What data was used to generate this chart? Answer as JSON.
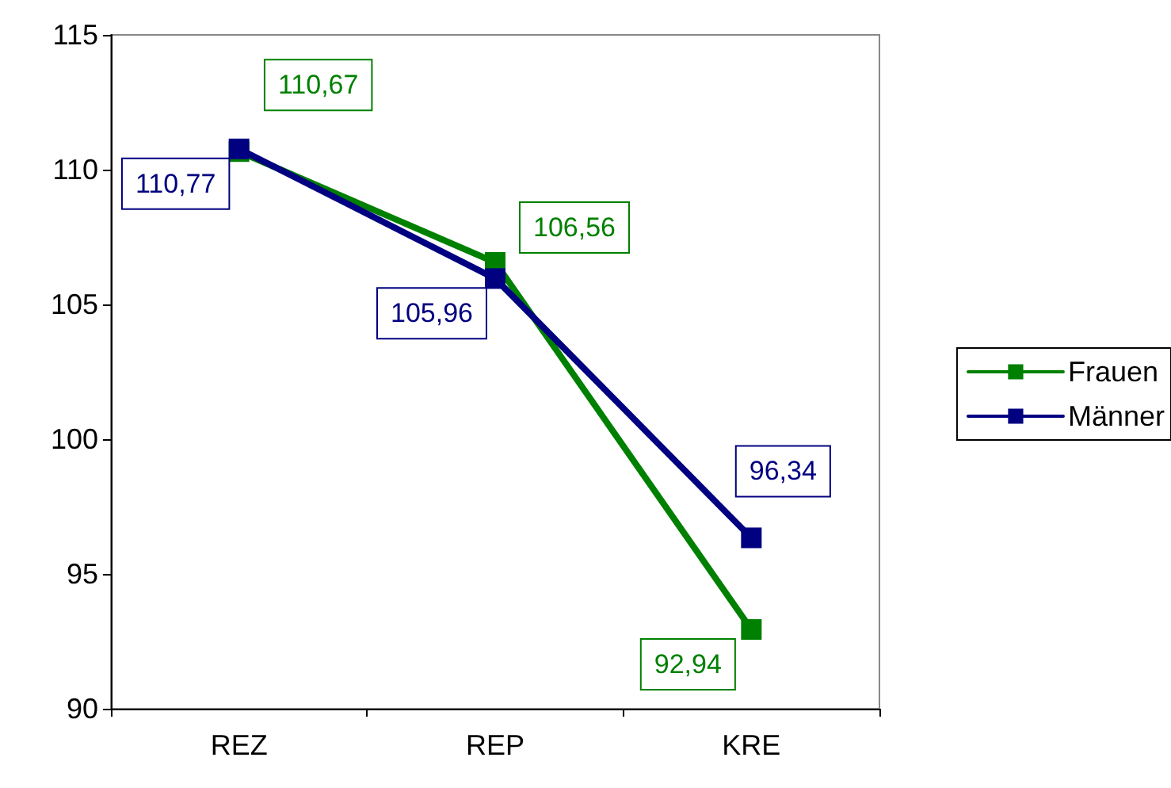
{
  "chart_data": {
    "type": "line",
    "categories": [
      "REZ",
      "REP",
      "KRE"
    ],
    "series": [
      {
        "name": "Frauen",
        "color": "#008000",
        "values": [
          110.67,
          106.56,
          92.94
        ]
      },
      {
        "name": "Männer",
        "color": "#000080",
        "values": [
          110.77,
          105.96,
          96.34
        ]
      }
    ],
    "value_labels": [
      [
        "110,67",
        "106,56",
        "92,94"
      ],
      [
        "110,77",
        "105,96",
        "96,34"
      ]
    ],
    "ylim": [
      90,
      115
    ],
    "yticks": [
      90,
      95,
      100,
      105,
      110,
      115
    ],
    "grid": false,
    "legend": "right",
    "marker": "square",
    "line_style": "solid"
  }
}
